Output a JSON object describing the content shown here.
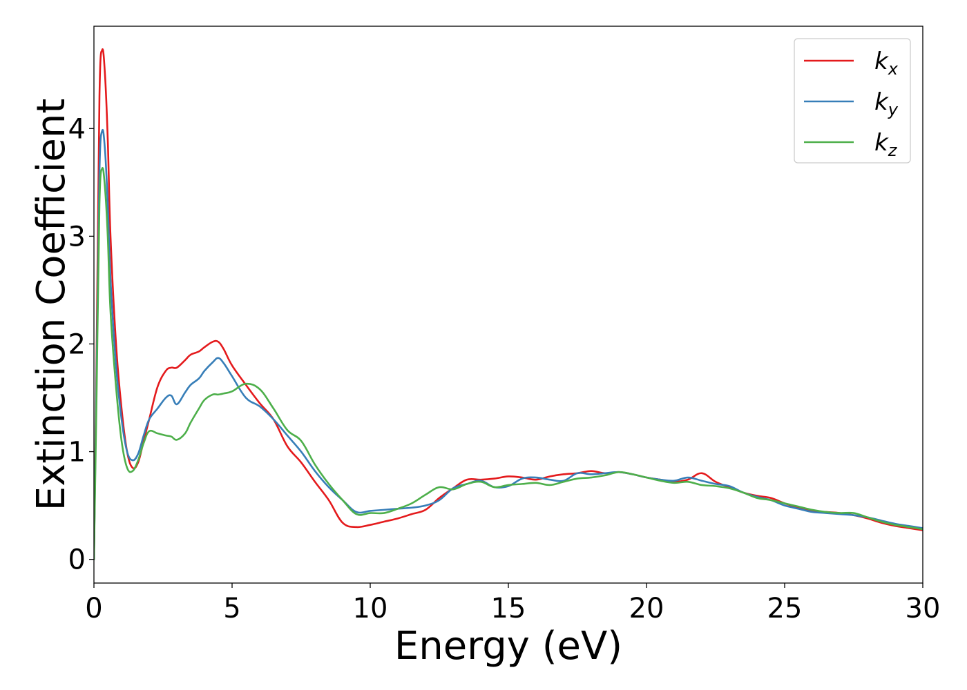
{
  "chart_data": {
    "type": "line",
    "title": "",
    "xlabel": "Energy (eV)",
    "ylabel": "Extinction Coefficient",
    "xlim": [
      0,
      30
    ],
    "ylim": [
      -0.22,
      4.95
    ],
    "xticks": [
      0,
      5,
      10,
      15,
      20,
      25,
      30
    ],
    "yticks": [
      0,
      1,
      2,
      3,
      4
    ],
    "xtick_labels": [
      "0",
      "5",
      "10",
      "15",
      "20",
      "25",
      "30"
    ],
    "ytick_labels": [
      "0",
      "1",
      "2",
      "3",
      "4"
    ],
    "grid": false,
    "legend_position": "top-right",
    "series": [
      {
        "name": "k",
        "subscript": "x",
        "color": "#e41a1c",
        "x": [
          0,
          0.1,
          0.2,
          0.3,
          0.4,
          0.5,
          0.6,
          0.8,
          1.0,
          1.2,
          1.4,
          1.6,
          1.8,
          2.0,
          2.3,
          2.6,
          2.8,
          3.0,
          3.3,
          3.5,
          3.8,
          4.0,
          4.3,
          4.5,
          4.7,
          5.0,
          5.5,
          6.0,
          6.5,
          7.0,
          7.5,
          8.0,
          8.5,
          9.0,
          9.5,
          10.0,
          10.5,
          11.0,
          11.5,
          12.0,
          12.5,
          13.0,
          13.5,
          14.0,
          14.5,
          15.0,
          15.5,
          16.0,
          16.5,
          17.0,
          17.5,
          18.0,
          18.5,
          19.0,
          19.5,
          20.0,
          20.5,
          21.0,
          21.5,
          22.0,
          22.5,
          23.0,
          23.5,
          24.0,
          24.5,
          25.0,
          25.5,
          26.0,
          26.5,
          27.0,
          27.5,
          28.0,
          28.5,
          29.0,
          29.5,
          30.0
        ],
        "y": [
          0,
          2.0,
          4.3,
          4.73,
          4.5,
          3.9,
          3.0,
          2.0,
          1.4,
          1.0,
          0.85,
          0.9,
          1.1,
          1.3,
          1.6,
          1.75,
          1.78,
          1.78,
          1.85,
          1.9,
          1.93,
          1.97,
          2.02,
          2.02,
          1.95,
          1.8,
          1.62,
          1.45,
          1.3,
          1.05,
          0.9,
          0.72,
          0.55,
          0.34,
          0.3,
          0.32,
          0.35,
          0.38,
          0.42,
          0.46,
          0.57,
          0.66,
          0.74,
          0.74,
          0.75,
          0.77,
          0.76,
          0.74,
          0.77,
          0.79,
          0.8,
          0.82,
          0.8,
          0.81,
          0.79,
          0.76,
          0.74,
          0.72,
          0.74,
          0.8,
          0.72,
          0.67,
          0.62,
          0.59,
          0.57,
          0.52,
          0.48,
          0.45,
          0.44,
          0.43,
          0.41,
          0.38,
          0.34,
          0.31,
          0.29,
          0.27
        ]
      },
      {
        "name": "k",
        "subscript": "y",
        "color": "#377eb8",
        "x": [
          0,
          0.1,
          0.2,
          0.3,
          0.4,
          0.5,
          0.6,
          0.8,
          1.0,
          1.2,
          1.4,
          1.6,
          1.8,
          2.0,
          2.3,
          2.6,
          2.8,
          3.0,
          3.3,
          3.5,
          3.8,
          4.0,
          4.3,
          4.5,
          4.7,
          5.0,
          5.5,
          6.0,
          6.5,
          7.0,
          7.5,
          8.0,
          8.5,
          9.0,
          9.5,
          10.0,
          10.5,
          11.0,
          11.5,
          12.0,
          12.5,
          13.0,
          13.5,
          14.0,
          14.5,
          15.0,
          15.5,
          16.0,
          16.5,
          17.0,
          17.5,
          18.0,
          18.5,
          19.0,
          19.5,
          20.0,
          20.5,
          21.0,
          21.5,
          22.0,
          22.5,
          23.0,
          23.5,
          24.0,
          24.5,
          25.0,
          25.5,
          26.0,
          26.5,
          27.0,
          27.5,
          28.0,
          28.5,
          29.0,
          29.5,
          30.0
        ],
        "y": [
          0,
          1.8,
          3.6,
          3.98,
          3.8,
          3.3,
          2.6,
          1.8,
          1.3,
          1.0,
          0.92,
          0.98,
          1.15,
          1.3,
          1.4,
          1.5,
          1.52,
          1.44,
          1.55,
          1.62,
          1.68,
          1.75,
          1.83,
          1.87,
          1.82,
          1.7,
          1.5,
          1.42,
          1.3,
          1.15,
          1.0,
          0.82,
          0.67,
          0.55,
          0.44,
          0.45,
          0.46,
          0.47,
          0.48,
          0.5,
          0.55,
          0.66,
          0.7,
          0.73,
          0.67,
          0.68,
          0.75,
          0.76,
          0.74,
          0.73,
          0.8,
          0.79,
          0.8,
          0.81,
          0.79,
          0.76,
          0.74,
          0.73,
          0.76,
          0.73,
          0.7,
          0.68,
          0.62,
          0.58,
          0.55,
          0.5,
          0.47,
          0.44,
          0.43,
          0.42,
          0.41,
          0.39,
          0.36,
          0.33,
          0.31,
          0.29
        ]
      },
      {
        "name": "k",
        "subscript": "z",
        "color": "#4daf4a",
        "x": [
          0,
          0.1,
          0.2,
          0.3,
          0.4,
          0.5,
          0.6,
          0.8,
          1.0,
          1.2,
          1.4,
          1.6,
          1.8,
          2.0,
          2.3,
          2.6,
          2.8,
          3.0,
          3.3,
          3.5,
          3.8,
          4.0,
          4.3,
          4.5,
          4.7,
          5.0,
          5.5,
          6.0,
          6.5,
          7.0,
          7.5,
          8.0,
          8.5,
          9.0,
          9.5,
          10.0,
          10.5,
          11.0,
          11.5,
          12.0,
          12.5,
          13.0,
          13.5,
          14.0,
          14.5,
          15.0,
          15.5,
          16.0,
          16.5,
          17.0,
          17.5,
          18.0,
          18.5,
          19.0,
          19.5,
          20.0,
          20.5,
          21.0,
          21.5,
          22.0,
          22.5,
          23.0,
          23.5,
          24.0,
          24.5,
          25.0,
          25.5,
          26.0,
          26.5,
          27.0,
          27.5,
          28.0,
          28.5,
          29.0,
          29.5,
          30.0
        ],
        "y": [
          0,
          1.6,
          3.3,
          3.63,
          3.45,
          3.0,
          2.3,
          1.6,
          1.1,
          0.85,
          0.82,
          0.92,
          1.08,
          1.19,
          1.17,
          1.15,
          1.14,
          1.11,
          1.17,
          1.27,
          1.4,
          1.48,
          1.53,
          1.53,
          1.54,
          1.56,
          1.63,
          1.58,
          1.4,
          1.2,
          1.1,
          0.88,
          0.7,
          0.55,
          0.42,
          0.43,
          0.43,
          0.47,
          0.52,
          0.6,
          0.67,
          0.65,
          0.7,
          0.72,
          0.67,
          0.69,
          0.7,
          0.71,
          0.69,
          0.72,
          0.75,
          0.76,
          0.78,
          0.81,
          0.79,
          0.76,
          0.73,
          0.71,
          0.72,
          0.69,
          0.68,
          0.66,
          0.62,
          0.57,
          0.55,
          0.52,
          0.49,
          0.46,
          0.44,
          0.43,
          0.43,
          0.39,
          0.35,
          0.32,
          0.3,
          0.28
        ]
      }
    ]
  }
}
